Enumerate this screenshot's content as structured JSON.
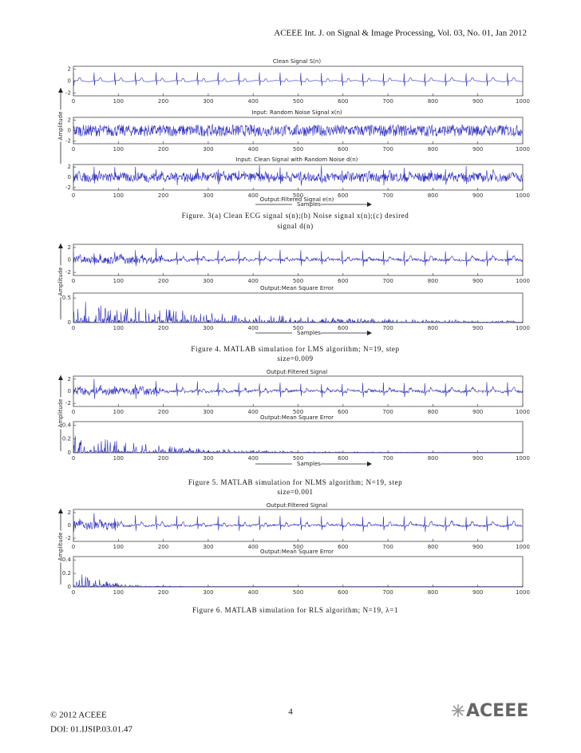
{
  "header": {
    "text": "ACEEE Int. J. on Signal & Image Processing, Vol. 03, No. 01, Jan 2012"
  },
  "figures": [
    {
      "amplitude_label": "Amplitude",
      "samples_label": "Samples",
      "panels": [
        {
          "title": "Clean  Signal S(n)",
          "xlim": [
            0,
            1000
          ],
          "ylim": [
            -2.5,
            2.5
          ],
          "yticks": [
            2,
            0,
            -2
          ],
          "xticks": [
            0,
            100,
            200,
            300,
            400,
            500,
            600,
            700,
            800,
            900,
            1000
          ]
        },
        {
          "title": "Input: Random Noise Signal x(n)",
          "xlim": [
            0,
            1000
          ],
          "ylim": [
            -2.5,
            2.5
          ],
          "yticks": [
            2,
            0,
            -2
          ],
          "xticks": [
            0,
            100,
            200,
            300,
            400,
            500,
            600,
            700,
            800,
            900,
            1000
          ]
        },
        {
          "title": "Input: Clean  Signal with Random Noise d(n)",
          "xlim": [
            0,
            1000
          ],
          "ylim": [
            -2.5,
            2.5
          ],
          "yticks": [
            2,
            0,
            -2
          ],
          "xticks": [
            0,
            100,
            200,
            300,
            400,
            500,
            600,
            700,
            800,
            900,
            1000
          ]
        }
      ],
      "caption": [
        "Figure. 3(a) Clean ECG signal s(n);(b) Noise signal x(n);(c) desired",
        "signal d(n)"
      ]
    },
    {
      "amplitude_label": "Amplitude",
      "samples_label": "Samples",
      "panels": [
        {
          "title": "Output:Filtered Signal e(n)",
          "xlim": [
            0,
            1000
          ],
          "ylim": [
            -2.5,
            2.5
          ],
          "yticks": [
            2,
            0,
            -2
          ],
          "xticks": [
            0,
            100,
            200,
            300,
            400,
            500,
            600,
            700,
            800,
            900,
            1000
          ]
        },
        {
          "title": "Output:Mean Square Error",
          "xlim": [
            0,
            1000
          ],
          "ylim": [
            0,
            0.6
          ],
          "yticks": [
            0.5,
            0
          ],
          "xticks": [
            0,
            100,
            200,
            300,
            400,
            500,
            600,
            700,
            800,
            900,
            1000
          ]
        }
      ],
      "caption": [
        "Figure 4. MATLAB simulation for LMS algorithm; N=19, step",
        "size=0.009"
      ]
    },
    {
      "amplitude_label": "Amplitude",
      "samples_label": "Samples",
      "panels": [
        {
          "title": "Output:Filtered  Signal",
          "xlim": [
            0,
            1000
          ],
          "ylim": [
            -2.5,
            2.5
          ],
          "yticks": [
            2,
            0,
            -2
          ],
          "xticks": [
            0,
            100,
            200,
            300,
            400,
            500,
            600,
            700,
            800,
            900,
            1000
          ]
        },
        {
          "title": "Output:Mean Square Error",
          "xlim": [
            0,
            1000
          ],
          "ylim": [
            0,
            0.45
          ],
          "yticks": [
            0.4,
            0.2,
            0
          ],
          "xticks": [
            0,
            100,
            200,
            300,
            400,
            500,
            600,
            700,
            800,
            900,
            1000
          ]
        }
      ],
      "caption": [
        "Figure 5. MATLAB simulation for NLMS algorithm; N=19, step",
        "size=0.001"
      ]
    },
    {
      "amplitude_label": "Amplitude",
      "panels": [
        {
          "title": "Output:Filtered  Signal",
          "xlim": [
            0,
            1000
          ],
          "ylim": [
            -2.5,
            2.5
          ],
          "yticks": [
            2,
            0,
            -2
          ],
          "xticks": [
            0,
            100,
            200,
            300,
            400,
            500,
            600,
            700,
            800,
            900,
            1000
          ]
        },
        {
          "title": "Output:Mean Square Error",
          "xlim": [
            0,
            1000
          ],
          "ylim": [
            0,
            0.45
          ],
          "yticks": [
            0.4,
            0.2,
            0
          ],
          "xticks": [
            0,
            100,
            200,
            300,
            400,
            500,
            600,
            700,
            800,
            900,
            1000
          ]
        }
      ],
      "caption": [
        "Figure 6. MATLAB simulation for RLS algorithm; N=19, λ=1"
      ]
    }
  ],
  "footer": {
    "page": "4",
    "copyright": "© 2012 ACEEE",
    "doi": "DOI: 01.IJSIP.03.01.47",
    "logo": "ACEEE"
  }
}
